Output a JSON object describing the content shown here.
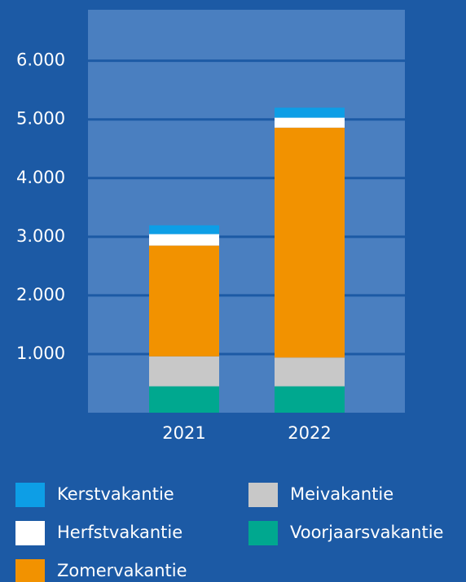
{
  "chart_data": {
    "type": "bar",
    "stacked": true,
    "categories": [
      "2021",
      "2022"
    ],
    "series": [
      {
        "name": "Voorjaarsvakantie",
        "color": "#00a88f",
        "values": [
          450,
          450
        ]
      },
      {
        "name": "Meivakantie",
        "color": "#c8c8c8",
        "values": [
          510,
          490
        ]
      },
      {
        "name": "Zomervakantie",
        "color": "#f29200",
        "values": [
          1890,
          3920
        ]
      },
      {
        "name": "Herfstvakantie",
        "color": "#ffffff",
        "values": [
          195,
          170
        ]
      },
      {
        "name": "Kerstvakantie",
        "color": "#0d9ee6",
        "values": [
          150,
          170
        ]
      }
    ],
    "ylim": [
      0,
      6870
    ],
    "yticks": [
      {
        "value": 1000,
        "label": "1.000"
      },
      {
        "value": 2000,
        "label": "2.000"
      },
      {
        "value": 3000,
        "label": "3.000"
      },
      {
        "value": 4000,
        "label": "4.000"
      },
      {
        "value": 5000,
        "label": "5.000"
      },
      {
        "value": 6000,
        "label": "6.000"
      }
    ],
    "grid": true
  }
}
